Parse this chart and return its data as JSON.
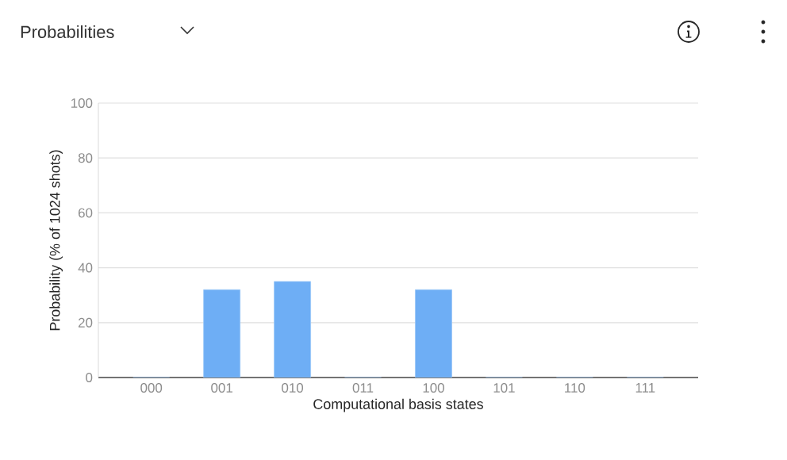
{
  "chart_data": {
    "type": "bar",
    "title": "Probabilities",
    "xlabel": "Computational basis states",
    "ylabel": "Probability (% of 1024 shots)",
    "categories": [
      "000",
      "001",
      "010",
      "011",
      "100",
      "101",
      "110",
      "111"
    ],
    "values": [
      0,
      32,
      35,
      0,
      32,
      0,
      0,
      0
    ],
    "color": "#6eaef5",
    "ylim": [
      0,
      100
    ],
    "yticks": [
      0,
      20,
      40,
      60,
      80,
      100
    ],
    "grid": "y"
  }
}
